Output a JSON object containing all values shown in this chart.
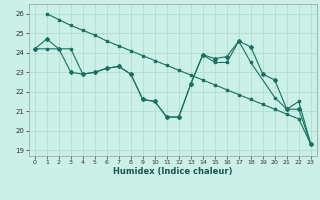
{
  "xlabel": "Humidex (Indice chaleur)",
  "background_color": "#caf0e8",
  "grid_color": "#b0d8cc",
  "line_color": "#1a7060",
  "xlim": [
    -0.5,
    23.5
  ],
  "ylim": [
    18.7,
    26.5
  ],
  "yticks": [
    19,
    20,
    21,
    22,
    23,
    24,
    25,
    26
  ],
  "xticks": [
    0,
    1,
    2,
    3,
    4,
    5,
    6,
    7,
    8,
    9,
    10,
    11,
    12,
    13,
    14,
    15,
    16,
    17,
    18,
    19,
    20,
    21,
    22,
    23
  ],
  "line1_x": [
    1,
    2,
    3,
    4,
    5,
    6,
    7,
    8,
    9,
    10,
    11,
    12,
    13,
    14,
    15,
    16,
    17,
    18,
    19,
    20,
    21,
    22,
    23
  ],
  "line1_y": [
    26.0,
    25.7,
    25.4,
    25.15,
    24.9,
    24.6,
    24.35,
    24.1,
    23.85,
    23.6,
    23.35,
    23.1,
    22.85,
    22.6,
    22.35,
    22.1,
    21.85,
    21.6,
    21.35,
    21.1,
    20.85,
    20.6,
    19.3
  ],
  "line2_x": [
    0,
    1,
    2,
    3,
    4,
    5,
    6,
    7,
    8,
    9,
    10,
    11,
    12,
    13,
    14,
    15,
    16,
    17,
    18,
    19,
    20,
    21,
    22,
    23
  ],
  "line2_y": [
    24.2,
    24.7,
    24.2,
    23.0,
    22.9,
    23.0,
    23.2,
    23.3,
    22.9,
    21.6,
    21.5,
    20.7,
    20.7,
    22.4,
    23.9,
    23.7,
    23.8,
    24.6,
    24.3,
    22.9,
    22.6,
    21.1,
    21.1,
    19.3
  ],
  "line3_x": [
    0,
    1,
    3,
    4,
    5,
    6,
    7,
    8,
    9,
    10,
    11,
    12,
    13,
    14,
    15,
    16,
    17,
    18,
    20,
    21,
    22,
    23
  ],
  "line3_y": [
    24.2,
    24.2,
    24.2,
    22.9,
    23.0,
    23.2,
    23.3,
    22.9,
    21.6,
    21.5,
    20.7,
    20.7,
    22.4,
    23.9,
    23.5,
    23.5,
    24.6,
    23.5,
    21.7,
    21.1,
    21.5,
    19.3
  ]
}
